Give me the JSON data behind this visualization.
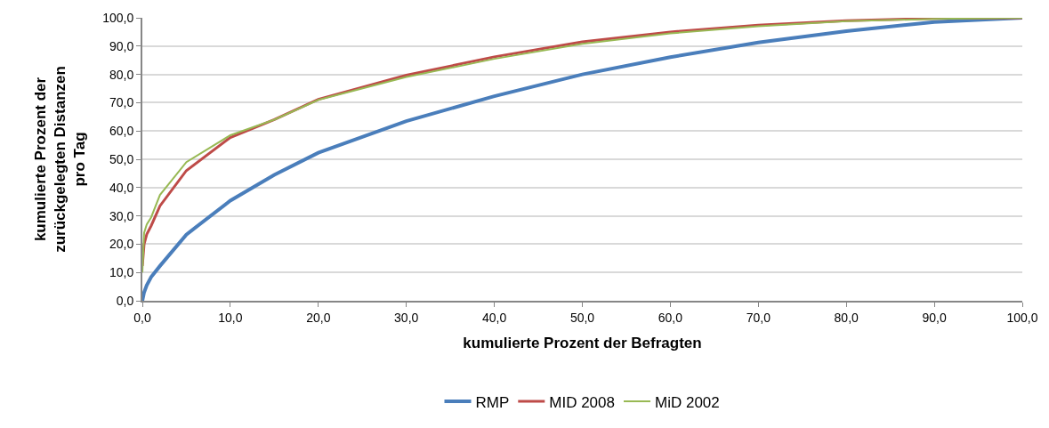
{
  "chart_data": {
    "type": "line",
    "xlabel": "kumulierte Prozent der Befragten",
    "ylabel": "kumulierte Prozent der zurückgelegten Distanzen pro Tag",
    "series": [
      {
        "name": "RMP",
        "color": "#4a7ebb",
        "x": [
          0,
          0.2,
          0.5,
          1,
          2,
          5,
          10,
          15,
          20,
          30,
          40,
          50,
          60,
          70,
          80,
          90,
          100
        ],
        "values": [
          0,
          3,
          5.5,
          8.4,
          12.3,
          23.4,
          35.4,
          44.5,
          52.3,
          63.5,
          72.3,
          80.0,
          86.1,
          91.3,
          95.3,
          98.5,
          100
        ]
      },
      {
        "name": "MID 2008",
        "color": "#be4b48",
        "x": [
          0,
          0.2,
          0.5,
          1,
          2,
          5,
          10,
          15,
          20,
          30,
          40,
          50,
          60,
          70,
          80,
          90,
          100
        ],
        "values": [
          12.3,
          20,
          23.5,
          26.5,
          33.5,
          46,
          57.7,
          64,
          71.2,
          79.7,
          86.2,
          91.5,
          95.0,
          97.4,
          99.0,
          99.8,
          100
        ]
      },
      {
        "name": "MiD 2002",
        "color": "#98b954",
        "x": [
          0,
          0.2,
          0.5,
          1,
          2,
          5,
          10,
          15,
          20,
          30,
          40,
          50,
          60,
          70,
          80,
          90,
          100
        ],
        "values": [
          10,
          24,
          27,
          29.5,
          37.4,
          49,
          58.5,
          64,
          71.0,
          79.1,
          85.5,
          90.8,
          94.5,
          97.0,
          98.8,
          99.6,
          100
        ]
      }
    ],
    "xlim": [
      0,
      100
    ],
    "ylim": [
      0,
      100
    ],
    "xticks": [
      {
        "value": 0,
        "label": "0,0"
      },
      {
        "value": 10,
        "label": "10,0"
      },
      {
        "value": 20,
        "label": "20,0"
      },
      {
        "value": 30,
        "label": "30,0"
      },
      {
        "value": 40,
        "label": "40,0"
      },
      {
        "value": 50,
        "label": "50,0"
      },
      {
        "value": 60,
        "label": "60,0"
      },
      {
        "value": 70,
        "label": "70,0"
      },
      {
        "value": 80,
        "label": "80,0"
      },
      {
        "value": 90,
        "label": "90,0"
      },
      {
        "value": 100,
        "label": "100,0"
      }
    ],
    "yticks": [
      {
        "value": 0,
        "label": "0,0"
      },
      {
        "value": 10,
        "label": "10,0"
      },
      {
        "value": 20,
        "label": "20,0"
      },
      {
        "value": 30,
        "label": "30,0"
      },
      {
        "value": 40,
        "label": "40,0"
      },
      {
        "value": 50,
        "label": "50,0"
      },
      {
        "value": 60,
        "label": "60,0"
      },
      {
        "value": 70,
        "label": "70,0"
      },
      {
        "value": 80,
        "label": "80,0"
      },
      {
        "value": 90,
        "label": "90,0"
      },
      {
        "value": 100,
        "label": "100,0"
      }
    ],
    "grid": "y",
    "legend": "bottom",
    "marker": "none",
    "line_style": "solid"
  }
}
